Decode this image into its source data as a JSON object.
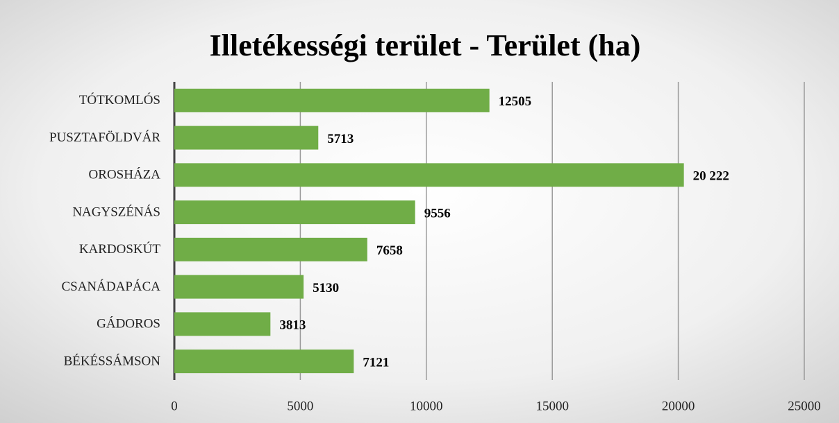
{
  "chart_data": {
    "type": "bar",
    "orientation": "horizontal",
    "title": "Illetékességi terület - Terület (ha)",
    "categories": [
      "TÓTKOMLÓS",
      "PUSZTAFÖLDVÁR",
      "OROSHÁZA",
      "NAGYSZÉNÁS",
      "KARDOSKÚT",
      "CSANÁDAPÁCA",
      "GÁDOROS",
      "BÉKÉSSÁMSON"
    ],
    "values": [
      12505,
      5713,
      20222,
      9556,
      7658,
      5130,
      3813,
      7121
    ],
    "value_labels": [
      "12505",
      "5713",
      "20 222",
      "9556",
      "7658",
      "5130",
      "3813",
      "7121"
    ],
    "color": "#70ad47",
    "xlim": [
      0,
      25000
    ],
    "xticks": [
      0,
      5000,
      10000,
      15000,
      20000,
      25000
    ],
    "grid": true
  }
}
